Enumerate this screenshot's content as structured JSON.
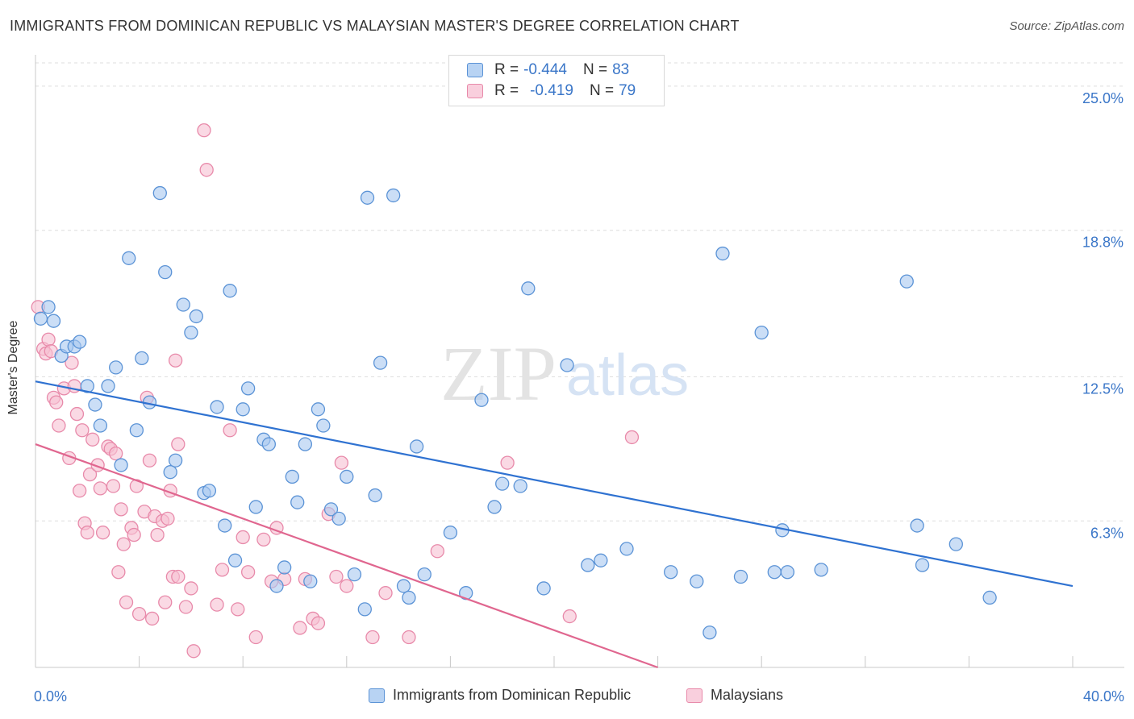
{
  "header": {
    "title": "IMMIGRANTS FROM DOMINICAN REPUBLIC VS MALAYSIAN MASTER'S DEGREE CORRELATION CHART",
    "source": "Source: ZipAtlas.com"
  },
  "watermark": {
    "zip": "ZIP",
    "atlas": "atlas"
  },
  "legend": {
    "r_label": "R =",
    "n_label": "N =",
    "series": [
      {
        "r": "-0.444",
        "n": "83"
      },
      {
        "r": "-0.419",
        "n": "79"
      }
    ]
  },
  "colors": {
    "blue_fill": "#a9c8f0",
    "blue_stroke": "#5b93d6",
    "blue_line": "#2f72d1",
    "pink_fill": "#f7c0d2",
    "pink_stroke": "#e88aaa",
    "pink_line": "#e0668f",
    "axis_value": "#3a76c8",
    "grid": "#dddddd"
  },
  "chart_data": {
    "type": "scatter",
    "title": "IMMIGRANTS FROM DOMINICAN REPUBLIC VS MALAYSIAN MASTER'S DEGREE CORRELATION CHART",
    "xlabel": "",
    "ylabel": "Master's Degree",
    "xlim": [
      0,
      40
    ],
    "ylim": [
      0,
      26
    ],
    "x_tick_labels": [
      "0.0%",
      "40.0%"
    ],
    "y_ticks": [
      6.3,
      12.5,
      18.8,
      25.0
    ],
    "y_tick_labels": [
      "6.3%",
      "12.5%",
      "18.8%",
      "25.0%"
    ],
    "grid": true,
    "series": [
      {
        "name": "Immigrants from Dominican Republic",
        "r": -0.444,
        "n": 83,
        "trend": {
          "x": [
            0,
            40
          ],
          "y": [
            12.3,
            3.5
          ]
        },
        "points": [
          {
            "x": 0.2,
            "y": 15.0
          },
          {
            "x": 0.5,
            "y": 15.5
          },
          {
            "x": 0.7,
            "y": 14.9
          },
          {
            "x": 1.0,
            "y": 13.4
          },
          {
            "x": 1.2,
            "y": 13.8
          },
          {
            "x": 1.5,
            "y": 13.8
          },
          {
            "x": 1.7,
            "y": 14.0
          },
          {
            "x": 2.0,
            "y": 12.1
          },
          {
            "x": 2.3,
            "y": 11.3
          },
          {
            "x": 2.5,
            "y": 10.4
          },
          {
            "x": 2.8,
            "y": 12.1
          },
          {
            "x": 3.1,
            "y": 12.9
          },
          {
            "x": 3.3,
            "y": 8.7
          },
          {
            "x": 3.6,
            "y": 17.6
          },
          {
            "x": 3.9,
            "y": 10.2
          },
          {
            "x": 4.1,
            "y": 13.3
          },
          {
            "x": 4.4,
            "y": 11.4
          },
          {
            "x": 4.8,
            "y": 20.4
          },
          {
            "x": 5.0,
            "y": 17.0
          },
          {
            "x": 5.2,
            "y": 8.4
          },
          {
            "x": 5.4,
            "y": 8.9
          },
          {
            "x": 5.7,
            "y": 15.6
          },
          {
            "x": 6.0,
            "y": 14.4
          },
          {
            "x": 6.2,
            "y": 15.1
          },
          {
            "x": 6.5,
            "y": 7.5
          },
          {
            "x": 6.7,
            "y": 7.6
          },
          {
            "x": 7.0,
            "y": 11.2
          },
          {
            "x": 7.3,
            "y": 6.1
          },
          {
            "x": 7.5,
            "y": 16.2
          },
          {
            "x": 7.7,
            "y": 4.6
          },
          {
            "x": 8.0,
            "y": 11.1
          },
          {
            "x": 8.2,
            "y": 12.0
          },
          {
            "x": 8.5,
            "y": 6.9
          },
          {
            "x": 8.8,
            "y": 9.8
          },
          {
            "x": 9.0,
            "y": 9.6
          },
          {
            "x": 9.3,
            "y": 3.5
          },
          {
            "x": 9.6,
            "y": 4.3
          },
          {
            "x": 9.9,
            "y": 8.2
          },
          {
            "x": 10.1,
            "y": 7.1
          },
          {
            "x": 10.4,
            "y": 9.6
          },
          {
            "x": 10.6,
            "y": 3.7
          },
          {
            "x": 10.9,
            "y": 11.1
          },
          {
            "x": 11.1,
            "y": 10.4
          },
          {
            "x": 11.4,
            "y": 6.8
          },
          {
            "x": 11.7,
            "y": 6.4
          },
          {
            "x": 12.0,
            "y": 8.2
          },
          {
            "x": 12.3,
            "y": 4.0
          },
          {
            "x": 12.7,
            "y": 2.5
          },
          {
            "x": 13.1,
            "y": 7.4
          },
          {
            "x": 13.3,
            "y": 13.1
          },
          {
            "x": 12.8,
            "y": 20.2
          },
          {
            "x": 13.8,
            "y": 20.3
          },
          {
            "x": 14.2,
            "y": 3.5
          },
          {
            "x": 14.4,
            "y": 3.0
          },
          {
            "x": 14.7,
            "y": 9.5
          },
          {
            "x": 15.0,
            "y": 4.0
          },
          {
            "x": 16.0,
            "y": 5.8
          },
          {
            "x": 16.6,
            "y": 3.2
          },
          {
            "x": 17.2,
            "y": 11.5
          },
          {
            "x": 17.7,
            "y": 6.9
          },
          {
            "x": 18.0,
            "y": 7.9
          },
          {
            "x": 18.7,
            "y": 7.8
          },
          {
            "x": 19.0,
            "y": 16.3
          },
          {
            "x": 19.6,
            "y": 3.4
          },
          {
            "x": 20.5,
            "y": 13.0
          },
          {
            "x": 21.3,
            "y": 4.4
          },
          {
            "x": 21.8,
            "y": 4.6
          },
          {
            "x": 22.8,
            "y": 5.1
          },
          {
            "x": 24.5,
            "y": 4.1
          },
          {
            "x": 25.5,
            "y": 3.7
          },
          {
            "x": 26.0,
            "y": 1.5
          },
          {
            "x": 26.5,
            "y": 17.8
          },
          {
            "x": 27.2,
            "y": 3.9
          },
          {
            "x": 28.0,
            "y": 14.4
          },
          {
            "x": 28.5,
            "y": 4.1
          },
          {
            "x": 28.8,
            "y": 5.9
          },
          {
            "x": 29.0,
            "y": 4.1
          },
          {
            "x": 30.3,
            "y": 4.2
          },
          {
            "x": 33.6,
            "y": 16.6
          },
          {
            "x": 34.0,
            "y": 6.1
          },
          {
            "x": 34.2,
            "y": 4.4
          },
          {
            "x": 35.5,
            "y": 5.3
          },
          {
            "x": 36.8,
            "y": 3.0
          }
        ]
      },
      {
        "name": "Malaysians",
        "r": -0.419,
        "n": 79,
        "trend": {
          "x": [
            0,
            24
          ],
          "y": [
            9.6,
            0.0
          ]
        },
        "points": [
          {
            "x": 0.1,
            "y": 15.5
          },
          {
            "x": 0.3,
            "y": 13.7
          },
          {
            "x": 0.4,
            "y": 13.5
          },
          {
            "x": 0.5,
            "y": 14.1
          },
          {
            "x": 0.6,
            "y": 13.6
          },
          {
            "x": 0.7,
            "y": 11.6
          },
          {
            "x": 0.8,
            "y": 11.4
          },
          {
            "x": 0.9,
            "y": 10.4
          },
          {
            "x": 1.1,
            "y": 12.0
          },
          {
            "x": 1.3,
            "y": 9.0
          },
          {
            "x": 1.4,
            "y": 13.1
          },
          {
            "x": 1.5,
            "y": 12.1
          },
          {
            "x": 1.6,
            "y": 10.9
          },
          {
            "x": 1.7,
            "y": 7.6
          },
          {
            "x": 1.8,
            "y": 10.2
          },
          {
            "x": 1.9,
            "y": 6.2
          },
          {
            "x": 2.0,
            "y": 5.8
          },
          {
            "x": 2.1,
            "y": 8.3
          },
          {
            "x": 2.2,
            "y": 9.8
          },
          {
            "x": 2.4,
            "y": 8.7
          },
          {
            "x": 2.5,
            "y": 7.7
          },
          {
            "x": 2.6,
            "y": 5.8
          },
          {
            "x": 2.8,
            "y": 9.5
          },
          {
            "x": 2.9,
            "y": 9.4
          },
          {
            "x": 3.0,
            "y": 7.8
          },
          {
            "x": 3.1,
            "y": 9.2
          },
          {
            "x": 3.2,
            "y": 4.1
          },
          {
            "x": 3.3,
            "y": 6.8
          },
          {
            "x": 3.4,
            "y": 5.3
          },
          {
            "x": 3.5,
            "y": 2.8
          },
          {
            "x": 3.7,
            "y": 6.0
          },
          {
            "x": 3.8,
            "y": 5.7
          },
          {
            "x": 3.9,
            "y": 7.8
          },
          {
            "x": 4.0,
            "y": 2.3
          },
          {
            "x": 4.2,
            "y": 6.7
          },
          {
            "x": 4.3,
            "y": 11.6
          },
          {
            "x": 4.4,
            "y": 8.9
          },
          {
            "x": 4.5,
            "y": 2.1
          },
          {
            "x": 4.6,
            "y": 6.5
          },
          {
            "x": 4.7,
            "y": 5.7
          },
          {
            "x": 4.9,
            "y": 6.3
          },
          {
            "x": 5.0,
            "y": 2.8
          },
          {
            "x": 5.1,
            "y": 6.4
          },
          {
            "x": 5.2,
            "y": 7.6
          },
          {
            "x": 5.3,
            "y": 3.9
          },
          {
            "x": 5.4,
            "y": 13.2
          },
          {
            "x": 5.5,
            "y": 9.6
          },
          {
            "x": 5.8,
            "y": 2.6
          },
          {
            "x": 6.0,
            "y": 3.4
          },
          {
            "x": 6.1,
            "y": 0.7
          },
          {
            "x": 6.5,
            "y": 23.1
          },
          {
            "x": 6.6,
            "y": 21.4
          },
          {
            "x": 7.0,
            "y": 2.7
          },
          {
            "x": 7.2,
            "y": 4.2
          },
          {
            "x": 7.5,
            "y": 10.2
          },
          {
            "x": 7.8,
            "y": 2.5
          },
          {
            "x": 8.0,
            "y": 5.6
          },
          {
            "x": 8.2,
            "y": 4.1
          },
          {
            "x": 8.5,
            "y": 1.3
          },
          {
            "x": 8.8,
            "y": 5.5
          },
          {
            "x": 9.1,
            "y": 3.7
          },
          {
            "x": 9.3,
            "y": 6.0
          },
          {
            "x": 9.6,
            "y": 3.8
          },
          {
            "x": 10.2,
            "y": 1.7
          },
          {
            "x": 10.4,
            "y": 3.8
          },
          {
            "x": 10.7,
            "y": 2.1
          },
          {
            "x": 10.9,
            "y": 1.9
          },
          {
            "x": 11.3,
            "y": 6.6
          },
          {
            "x": 11.6,
            "y": 3.9
          },
          {
            "x": 11.8,
            "y": 8.8
          },
          {
            "x": 12.0,
            "y": 3.5
          },
          {
            "x": 13.0,
            "y": 1.3
          },
          {
            "x": 13.5,
            "y": 3.2
          },
          {
            "x": 14.4,
            "y": 1.3
          },
          {
            "x": 15.5,
            "y": 5.0
          },
          {
            "x": 18.2,
            "y": 8.8
          },
          {
            "x": 20.6,
            "y": 2.2
          },
          {
            "x": 23.0,
            "y": 9.9
          },
          {
            "x": 5.5,
            "y": 3.9
          }
        ]
      }
    ]
  }
}
